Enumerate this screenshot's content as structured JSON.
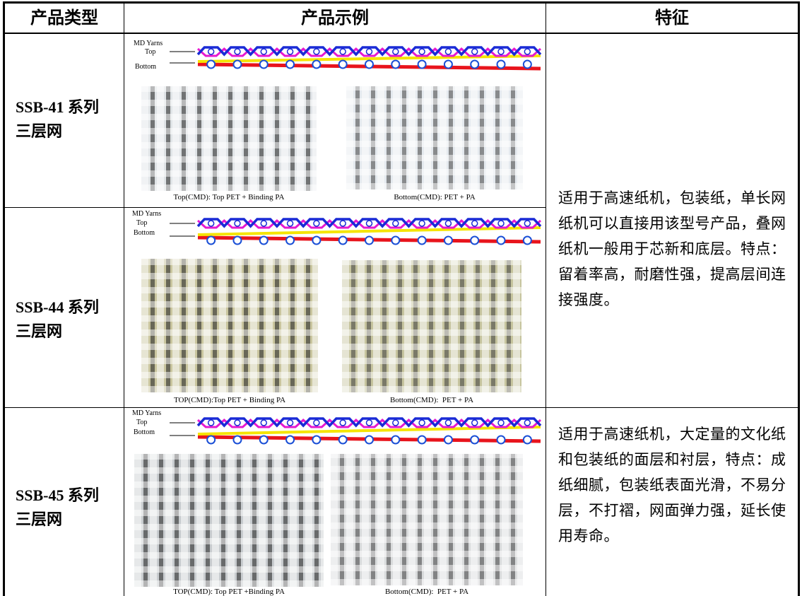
{
  "table": {
    "headers": [
      "产品类型",
      "产品示例",
      "特征"
    ],
    "rows": [
      {
        "product": "SSB-41 系列三层网",
        "diagram": {
          "label": "MD Yarns",
          "top": "Top",
          "bottom": "Bottom"
        },
        "captions": [
          "Top(CMD): Top PET + Binding PA",
          "Bottom(CMD): PET + PA"
        ],
        "feature": "适用于高速纸机，包装纸，单长网纸机可以直接用该型号产品，叠网纸机一般用于芯新和底层。特点：留着率高，耐磨性强，提高层间连接强度。"
      },
      {
        "product": "SSB-44 系列三层网",
        "diagram": {
          "label": "MD Yarns",
          "top": "Top",
          "bottom": "Bottom"
        },
        "captions": [
          "TOP(CMD):Top PET + Binding PA",
          "Bottom(CMD):  PET + PA"
        ]
      },
      {
        "product": "SSB-45 系列三层网",
        "diagram": {
          "label": "MD Yarns",
          "top": "Top",
          "bottom": "Bottom"
        },
        "captions": [
          "TOP(CMD): Top PET +Binding PA",
          "Bottom(CMD):  PET + PA"
        ],
        "feature": "适用于高速纸机，大定量的文化纸和包装纸的面层和衬层，特点：成纸细腻，包装纸表面光滑，不易分层，不打褶，网面弹力强，延长使用寿命。"
      }
    ]
  }
}
